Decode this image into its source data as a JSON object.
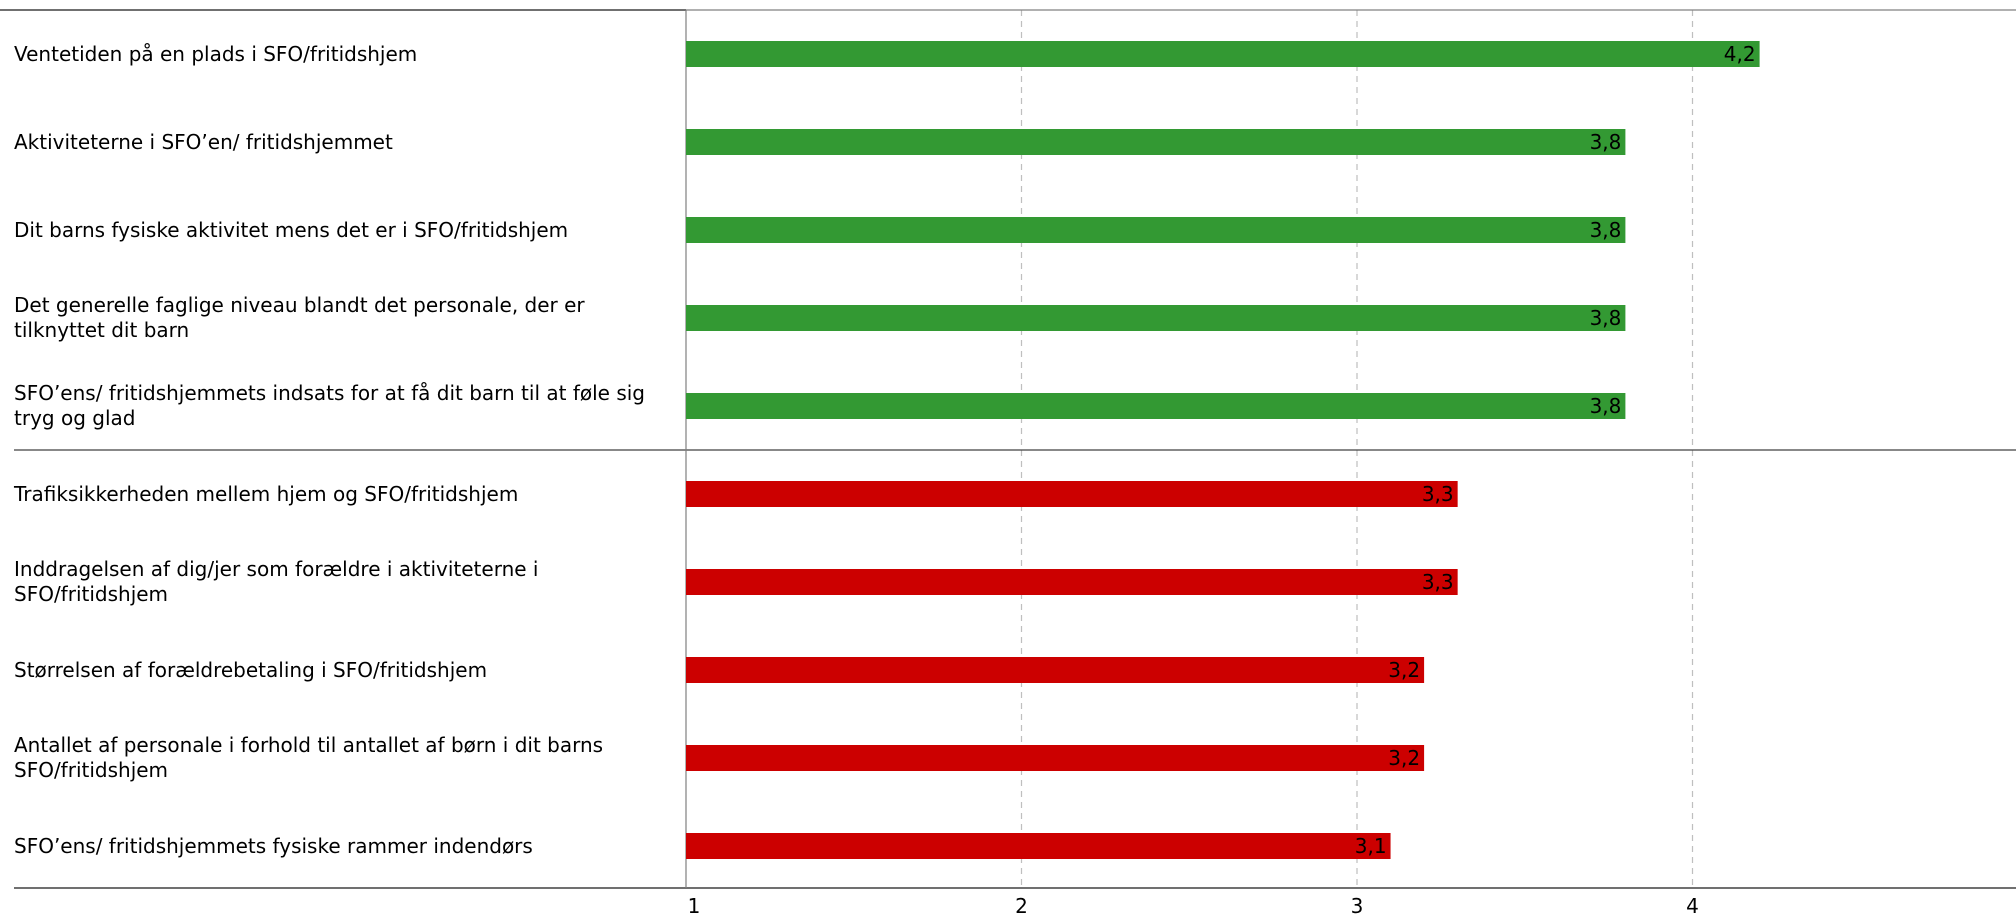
{
  "colors": {
    "positive": "#339933",
    "negative": "#cc0000",
    "grid": "#bfbfbf",
    "axis": "#808080",
    "separator": "#404040"
  },
  "chart_data": {
    "type": "bar",
    "orientation": "horizontal",
    "categories": [
      "Ventetiden på en plads i SFO/fritidshjem",
      "Aktiviteterne i SFO’en/ fritidshjemmet",
      "Dit barns fysiske aktivitet mens det er i SFO/fritidshjem",
      "Det generelle faglige niveau blandt det personale, der er tilknyttet dit barn",
      "SFO’ens/ fritidshjemmets indsats for at få dit barn til at føle sig tryg og glad",
      "Trafiksikkerheden mellem hjem og SFO/fritidshjem",
      "Inddragelsen af dig/jer som forældre i aktiviteterne i SFO/fritidshjem",
      "Størrelsen af forældrebetaling i SFO/fritidshjem",
      "Antallet af personale i forhold til antallet af børn i dit barns SFO/fritidshjem",
      "SFO’ens/ fritidshjemmets fysiske rammer indendørs"
    ],
    "values": [
      4.2,
      3.8,
      3.8,
      3.8,
      3.8,
      3.3,
      3.3,
      3.2,
      3.2,
      3.1
    ],
    "value_labels": [
      "4,2",
      "3,8",
      "3,8",
      "3,8",
      "3,8",
      "3,3",
      "3,3",
      "3,2",
      "3,2",
      "3,1"
    ],
    "groups": [
      "positive",
      "positive",
      "positive",
      "positive",
      "positive",
      "negative",
      "negative",
      "negative",
      "negative",
      "negative"
    ],
    "xlim": [
      1,
      5
    ],
    "xticks": [
      1,
      2,
      3,
      4
    ],
    "xtick_labels": [
      "1",
      "2",
      "3",
      "4"
    ],
    "grid": true,
    "title": "",
    "xlabel": "",
    "ylabel": ""
  }
}
